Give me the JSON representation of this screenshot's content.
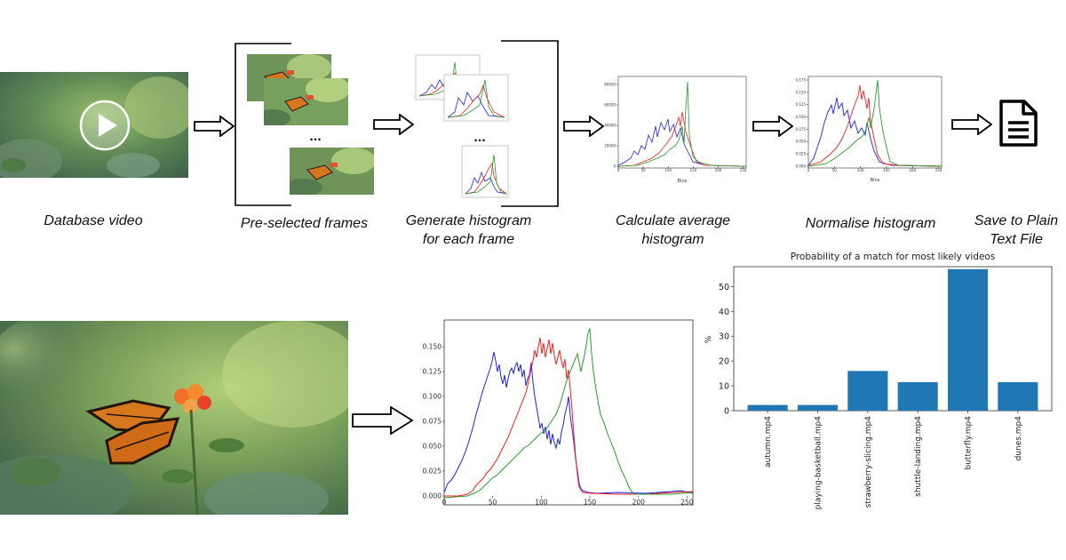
{
  "captions": {
    "database_video": "Database video",
    "preselected_frames": "Pre-selected frames",
    "generate_histogram_l1": "Generate histogram",
    "generate_histogram_l2": "for each frame",
    "average_l1": "Calculate average",
    "average_l2": "histogram",
    "normalise": "Normalise histogram",
    "save_l1": "Save to Plain",
    "save_l2": "Text File"
  },
  "ellipsis": "...",
  "colors": {
    "blue_channel": "#1f1fff",
    "red_channel": "#ff1a1a",
    "green_channel": "#2a9a2a",
    "bar": "#1f77b4"
  },
  "icons": {
    "play": "play-icon",
    "document": "document-icon",
    "arrow": "arrow-right-icon"
  },
  "small_hist_avg": {
    "yticks": [
      "0",
      "20000",
      "40000",
      "60000",
      "80000"
    ],
    "xticks": [
      "0",
      "50",
      "100",
      "150",
      "200",
      "250"
    ],
    "xlabel": "Bins"
  },
  "small_hist_norm": {
    "yticks": [
      "0.000",
      "0.025",
      "0.050",
      "0.075",
      "0.100",
      "0.125",
      "0.150",
      "0.175"
    ],
    "xticks": [
      "0",
      "50",
      "100",
      "150",
      "200",
      "250"
    ],
    "xlabel": "Bins"
  },
  "big_hist": {
    "yticks": [
      "0.000",
      "0.025",
      "0.050",
      "0.075",
      "0.100",
      "0.125",
      "0.150"
    ],
    "xticks": [
      "0",
      "50",
      "100",
      "150",
      "200",
      "250"
    ]
  },
  "chart_data": {
    "type": "bar",
    "title": "Probability of a match for most likely videos",
    "xlabel": "",
    "ylabel": "%",
    "categories": [
      "autumn.mp4",
      "playing-basketball.mp4",
      "strawberry-slicing.mp4",
      "shuttle-landing.mp4",
      "butterfly.mp4",
      "dunes.mp4"
    ],
    "values": [
      2.3,
      2.3,
      16,
      11.5,
      57,
      11.5
    ],
    "ylim": [
      0,
      58
    ],
    "yticks": [
      0,
      10,
      20,
      30,
      40,
      50
    ],
    "grid": false
  }
}
